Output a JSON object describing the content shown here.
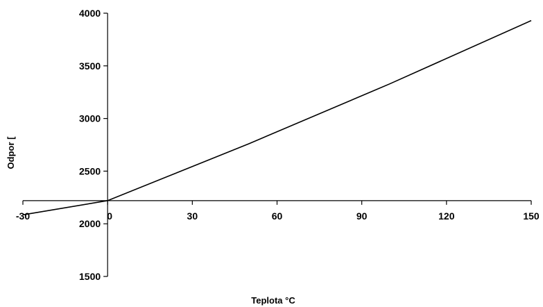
{
  "chart_data": {
    "type": "line",
    "title": "",
    "xlabel": "Teplota  °C",
    "ylabel": "Odpor [",
    "xlim": [
      -30,
      150
    ],
    "ylim": [
      1500,
      4000
    ],
    "x_ticks": [
      "-30",
      "0",
      "30",
      "60",
      "90",
      "120",
      "150"
    ],
    "y_ticks": [
      "1500",
      "2000",
      "2500",
      "3000",
      "3500",
      "4000"
    ],
    "x_axis_crosses_y_at": 2220,
    "y_axis_crosses_x_at": 0,
    "grid": false,
    "legend": "none",
    "series": [
      {
        "color": "#000000",
        "x": [
          -30,
          0,
          50,
          100,
          150
        ],
        "y": [
          2085,
          2220,
          2760,
          3330,
          3930
        ]
      }
    ]
  }
}
